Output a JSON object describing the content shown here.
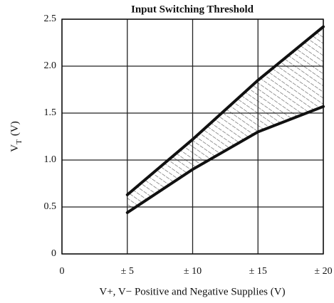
{
  "chart_data": {
    "type": "line",
    "title": "Input Switching Threshold",
    "xlabel": "V+, V− Positive and Negative Supplies (V)",
    "ylabel": [
      "V",
      "T",
      "(V)"
    ],
    "x": [
      5,
      10,
      15,
      20
    ],
    "series": [
      {
        "color": "#111111",
        "values": [
          0.63,
          1.22,
          1.85,
          2.42
        ]
      },
      {
        "color": "#111111",
        "values": [
          0.44,
          0.9,
          1.3,
          1.57
        ]
      }
    ],
    "hatch_between": true,
    "xlim": [
      0,
      20
    ],
    "ylim": [
      0,
      2.5
    ],
    "xticks": [
      0,
      {
        "value": 5,
        "label": "± 5"
      },
      {
        "value": 10,
        "label": "± 10"
      },
      {
        "value": 15,
        "label": "± 15"
      },
      {
        "value": 20,
        "label": "± 20"
      }
    ],
    "yticks": [
      0,
      0.5,
      {
        "value": 1,
        "label": "1.0"
      },
      1.5,
      {
        "value": 2,
        "label": "2.0"
      },
      2.5
    ],
    "grid": true
  }
}
